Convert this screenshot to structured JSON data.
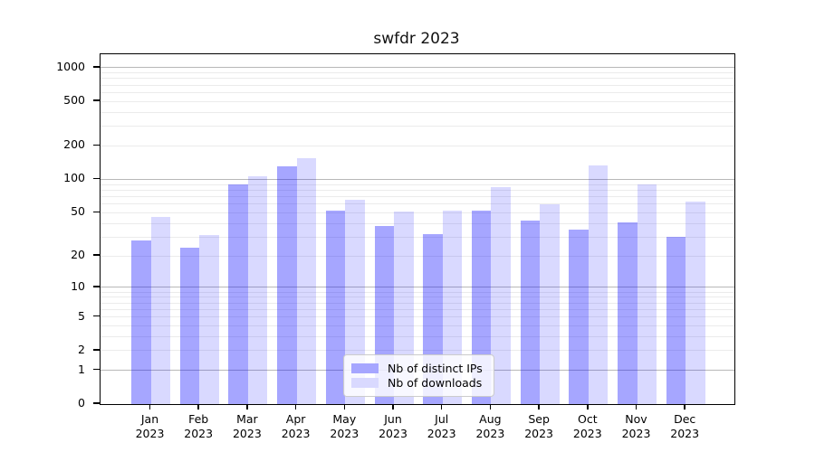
{
  "chart_data": {
    "type": "bar",
    "title": "swfdr 2023",
    "categories": [
      "Jan",
      "Feb",
      "Mar",
      "Apr",
      "May",
      "Jun",
      "Jul",
      "Aug",
      "Sep",
      "Oct",
      "Nov",
      "Dec"
    ],
    "category_year": "2023",
    "series": [
      {
        "name": "Nb of distinct IPs",
        "color": "rgba(0,0,255,0.35)",
        "legend_color": "#a6a6ff",
        "values": [
          28,
          24,
          90,
          130,
          52,
          38,
          32,
          52,
          42,
          35,
          41,
          30
        ]
      },
      {
        "name": "Nb of downloads",
        "color": "rgba(0,0,255,0.15)",
        "legend_color": "#d9d9ff",
        "values": [
          46,
          31,
          107,
          156,
          66,
          51,
          52,
          85,
          60,
          133,
          90,
          63
        ]
      }
    ],
    "xlabel": "",
    "ylabel": "",
    "yscale": "log1p",
    "ylim": [
      0,
      1320
    ],
    "y_ticks": [
      1000,
      500,
      200,
      100,
      50,
      20,
      10,
      5,
      2,
      1,
      0
    ],
    "grid": {
      "on": true,
      "major_color": "#b8b8b8",
      "minor_color": "#ebebeb",
      "major_values": [
        1,
        10,
        100,
        1000
      ]
    },
    "legend_position": "lower center",
    "axis_color": "#000000",
    "text_color": "#000000"
  }
}
